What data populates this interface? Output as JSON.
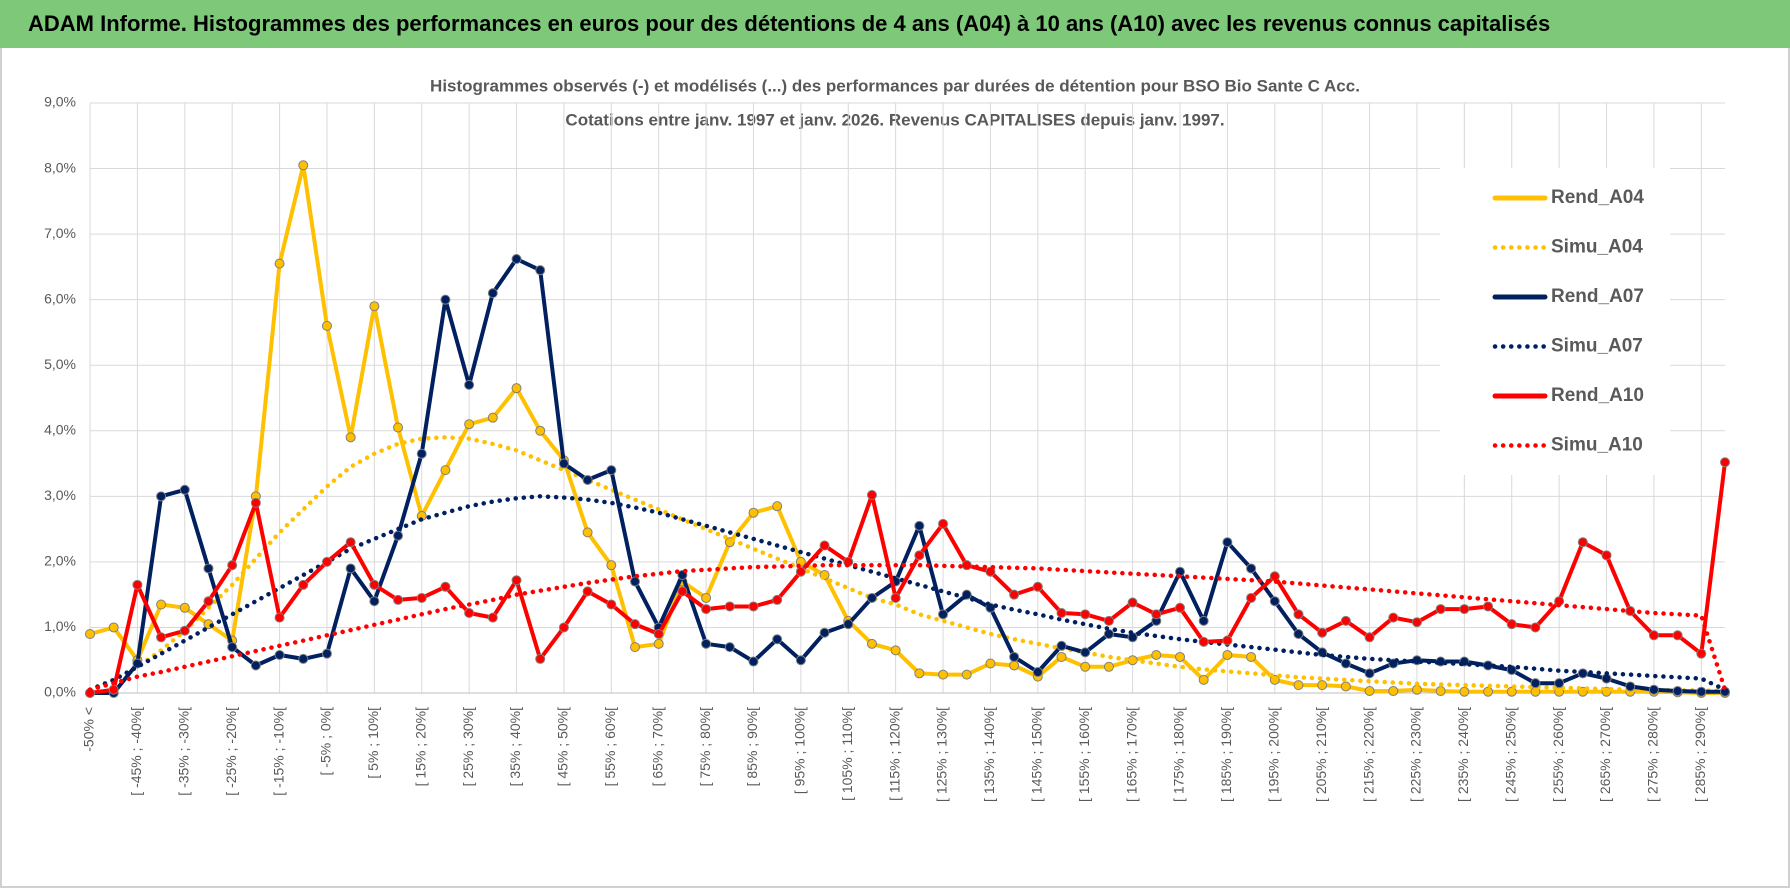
{
  "header": {
    "title": "ADAM Informe. Histogrammes des performances en euros pour des détentions de 4 ans (A04) à 10 ans (A10) avec les revenus connus capitalisés"
  },
  "chart_data": {
    "type": "line",
    "title": "Histogrammes observés (-) et modélisés (...) des performances par durées de détention pour BSO Bio Sante C Acc.",
    "subtitle": "Cotations entre janv. 1997 et janv. 2026. Revenus CAPITALISES depuis janv. 1997.",
    "categories": [
      "-50% <",
      null,
      "[ -45% ; -40%[",
      null,
      "[ -35% ; -30%[",
      null,
      "[ -25% ; -20%[",
      null,
      "[ -15% ; -10%[",
      null,
      "[ -5% ; 0%[",
      null,
      "[ 5% ; 10%[",
      null,
      "[ 15% ; 20%[",
      null,
      "[ 25% ; 30%[",
      null,
      "[ 35% ; 40%[",
      null,
      "[ 45% ; 50%[",
      null,
      "[ 55% ; 60%[",
      null,
      "[ 65% ; 70%[",
      null,
      "[ 75% ; 80%[",
      null,
      "[ 85% ; 90%[",
      null,
      "[ 95% ; 100%[",
      null,
      "[ 105% ; 110%[",
      null,
      "[ 115% ; 120%[",
      null,
      "[ 125% ; 130%[",
      null,
      "[ 135% ; 140%[",
      null,
      "[ 145% ; 150%[",
      null,
      "[ 155% ; 160%[",
      null,
      "[ 165% ; 170%[",
      null,
      "[ 175% ; 180%[",
      null,
      "[ 185% ; 190%[",
      null,
      "[ 195% ; 200%[",
      null,
      "[ 205% ; 210%[",
      null,
      "[ 215% ; 220%[",
      null,
      "[ 225% ; 230%[",
      null,
      "[ 235% ; 240%[",
      null,
      "[ 245% ; 250%[",
      null,
      "[ 255% ; 260%[",
      null,
      "[ 265% ; 270%[",
      null,
      "[ 275% ; 280%[",
      null,
      "[ 285% ; 290%[",
      null
    ],
    "ylim": [
      0,
      9
    ],
    "yticks": [
      {
        "value": 0,
        "label": "0,0%"
      },
      {
        "value": 1,
        "label": "1,0%"
      },
      {
        "value": 2,
        "label": "2,0%"
      },
      {
        "value": 3,
        "label": "3,0%"
      },
      {
        "value": 4,
        "label": "4,0%"
      },
      {
        "value": 5,
        "label": "5,0%"
      },
      {
        "value": 6,
        "label": "6,0%"
      },
      {
        "value": 7,
        "label": "7,0%"
      },
      {
        "value": 8,
        "label": "8,0%"
      },
      {
        "value": 9,
        "label": "9,0%"
      }
    ],
    "grid": true,
    "legend": "right",
    "series": [
      {
        "name": "Rend_A04",
        "color": "#ffc000",
        "style": "solid",
        "values": [
          0.9,
          1.0,
          0.5,
          1.35,
          1.3,
          1.05,
          0.8,
          3.0,
          6.55,
          8.05,
          5.6,
          3.9,
          5.9,
          4.05,
          2.7,
          3.4,
          4.1,
          4.2,
          4.65,
          4.0,
          3.55,
          2.45,
          1.95,
          0.7,
          0.75,
          1.7,
          1.45,
          2.3,
          2.75,
          2.85,
          2.0,
          1.8,
          1.1,
          0.75,
          0.65,
          0.3,
          0.28,
          0.28,
          0.45,
          0.42,
          0.25,
          0.55,
          0.4,
          0.4,
          0.5,
          0.58,
          0.55,
          0.2,
          0.58,
          0.55,
          0.2,
          0.12,
          0.12,
          0.1,
          0.03,
          0.03,
          0.05,
          0.03,
          0.02,
          0.02,
          0.02,
          0.02,
          0.02,
          0.02,
          0.02,
          0.02,
          0.02,
          0.01,
          0,
          0
        ]
      },
      {
        "name": "Simu_A04",
        "color": "#ffc000",
        "style": "dotted",
        "values": [
          0.05,
          0.2,
          0.4,
          0.65,
          0.95,
          1.3,
          1.65,
          2.05,
          2.45,
          2.8,
          3.15,
          3.45,
          3.65,
          3.8,
          3.88,
          3.9,
          3.88,
          3.8,
          3.7,
          3.55,
          3.4,
          3.25,
          3.1,
          2.95,
          2.8,
          2.65,
          2.5,
          2.35,
          2.2,
          2.05,
          1.9,
          1.75,
          1.6,
          1.45,
          1.35,
          1.2,
          1.1,
          1.0,
          0.9,
          0.82,
          0.75,
          0.68,
          0.62,
          0.55,
          0.5,
          0.45,
          0.4,
          0.36,
          0.33,
          0.3,
          0.27,
          0.24,
          0.22,
          0.2,
          0.18,
          0.16,
          0.14,
          0.13,
          0.12,
          0.11,
          0.1,
          0.09,
          0.08,
          0.07,
          0.06,
          0.05,
          0.05,
          0.04,
          0.04,
          0.03
        ]
      },
      {
        "name": "Rend_A07",
        "color": "#002060",
        "style": "solid",
        "values": [
          0,
          0,
          0.45,
          3.0,
          3.1,
          1.9,
          0.7,
          0.42,
          0.58,
          0.52,
          0.6,
          1.9,
          1.4,
          2.4,
          3.65,
          6.0,
          4.7,
          6.1,
          6.62,
          6.45,
          3.5,
          3.25,
          3.4,
          1.7,
          1.0,
          1.8,
          0.75,
          0.7,
          0.48,
          0.82,
          0.5,
          0.92,
          1.05,
          1.45,
          1.7,
          2.55,
          1.2,
          1.5,
          1.3,
          0.55,
          0.32,
          0.72,
          0.62,
          0.9,
          0.85,
          1.1,
          1.85,
          1.1,
          2.3,
          1.9,
          1.4,
          0.9,
          0.62,
          0.45,
          0.3,
          0.45,
          0.5,
          0.48,
          0.48,
          0.42,
          0.35,
          0.15,
          0.15,
          0.3,
          0.22,
          0.1,
          0.05,
          0.03,
          0.02,
          0.02
        ]
      },
      {
        "name": "Simu_A07",
        "color": "#002060",
        "style": "dotted",
        "values": [
          0.05,
          0.2,
          0.4,
          0.6,
          0.8,
          1.0,
          1.2,
          1.4,
          1.6,
          1.8,
          2.0,
          2.2,
          2.35,
          2.5,
          2.65,
          2.75,
          2.85,
          2.92,
          2.97,
          3.0,
          2.98,
          2.95,
          2.9,
          2.83,
          2.75,
          2.65,
          2.55,
          2.45,
          2.35,
          2.25,
          2.15,
          2.05,
          1.95,
          1.85,
          1.75,
          1.65,
          1.55,
          1.45,
          1.35,
          1.27,
          1.2,
          1.12,
          1.05,
          0.98,
          0.92,
          0.87,
          0.82,
          0.78,
          0.74,
          0.7,
          0.66,
          0.62,
          0.58,
          0.55,
          0.52,
          0.5,
          0.48,
          0.46,
          0.44,
          0.42,
          0.4,
          0.37,
          0.34,
          0.32,
          0.3,
          0.28,
          0.26,
          0.24,
          0.22,
          0.05
        ]
      },
      {
        "name": "Rend_A10",
        "color": "#ff0000",
        "style": "solid",
        "values": [
          0,
          0.05,
          1.65,
          0.85,
          0.95,
          1.4,
          1.95,
          2.9,
          1.15,
          1.65,
          2.0,
          2.3,
          1.65,
          1.42,
          1.45,
          1.62,
          1.22,
          1.15,
          1.72,
          0.52,
          1.0,
          1.55,
          1.35,
          1.05,
          0.9,
          1.55,
          1.28,
          1.32,
          1.32,
          1.42,
          1.85,
          2.25,
          2.0,
          3.02,
          1.45,
          2.1,
          2.58,
          1.95,
          1.85,
          1.5,
          1.62,
          1.22,
          1.2,
          1.1,
          1.38,
          1.2,
          1.3,
          0.78,
          0.8,
          1.45,
          1.78,
          1.2,
          0.92,
          1.1,
          0.85,
          1.15,
          1.08,
          1.28,
          1.28,
          1.32,
          1.05,
          1.0,
          1.4,
          2.3,
          2.1,
          1.25,
          0.88,
          0.88,
          0.6,
          3.52
        ]
      },
      {
        "name": "Simu_A10",
        "color": "#ff0000",
        "style": "dotted",
        "values": [
          0.05,
          0.15,
          0.25,
          0.32,
          0.4,
          0.48,
          0.56,
          0.64,
          0.72,
          0.8,
          0.88,
          0.96,
          1.04,
          1.12,
          1.2,
          1.28,
          1.35,
          1.42,
          1.5,
          1.56,
          1.62,
          1.68,
          1.73,
          1.78,
          1.82,
          1.86,
          1.88,
          1.9,
          1.92,
          1.93,
          1.94,
          1.95,
          1.95,
          1.95,
          1.95,
          1.95,
          1.94,
          1.93,
          1.92,
          1.91,
          1.9,
          1.88,
          1.86,
          1.84,
          1.82,
          1.8,
          1.78,
          1.76,
          1.74,
          1.72,
          1.7,
          1.67,
          1.64,
          1.61,
          1.58,
          1.55,
          1.52,
          1.49,
          1.46,
          1.43,
          1.4,
          1.37,
          1.34,
          1.31,
          1.28,
          1.25,
          1.22,
          1.2,
          1.18,
          0.05
        ]
      }
    ]
  }
}
